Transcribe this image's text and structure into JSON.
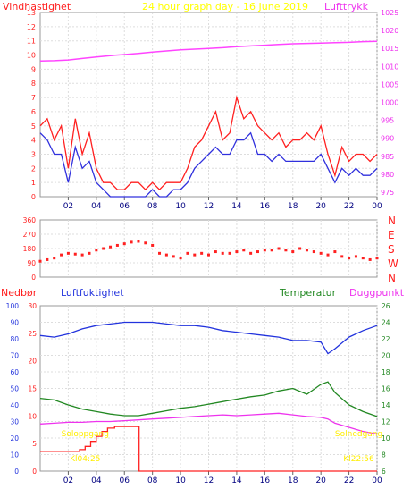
{
  "chart_data": [
    {
      "type": "line",
      "title": "24 hour graph day - 16 June 2019",
      "left_label": "Vindhastighet",
      "right_label": "Lufttrykk",
      "x_ticks": [
        "02",
        "04",
        "06",
        "08",
        "10",
        "12",
        "14",
        "16",
        "18",
        "20",
        "22",
        "00"
      ],
      "x_range": [
        0,
        24
      ],
      "y_left_range": [
        0,
        13
      ],
      "y_left_ticks": [
        "0",
        "1",
        "2",
        "3",
        "4",
        "5",
        "6",
        "7",
        "8",
        "9",
        "10",
        "11",
        "12",
        "13"
      ],
      "y_right_range": [
        973.75,
        1025
      ],
      "y_right_ticks": [
        "975",
        "980",
        "985",
        "990",
        "995",
        "1000",
        "1005",
        "1010",
        "1015",
        "1020",
        "1025"
      ],
      "series": [
        {
          "role": "wind_gust",
          "axis": "left",
          "color": "#ff2020",
          "x": [
            0,
            0.5,
            1,
            1.5,
            2,
            2.5,
            3,
            3.5,
            4,
            4.5,
            5,
            5.5,
            6,
            6.5,
            7,
            7.5,
            8,
            8.5,
            9,
            9.5,
            10,
            10.5,
            11,
            11.5,
            12,
            12.5,
            13,
            13.5,
            14,
            14.5,
            15,
            15.5,
            16,
            16.5,
            17,
            17.5,
            18,
            18.5,
            19,
            19.5,
            20,
            20.5,
            21,
            21.5,
            22,
            22.5,
            23,
            23.5,
            24
          ],
          "values": [
            5,
            5.5,
            4,
            5,
            2,
            5.5,
            3,
            4.5,
            2,
            1,
            1,
            0.5,
            0.5,
            1,
            1,
            0.5,
            1,
            0.5,
            1,
            1,
            1,
            2,
            3.5,
            4,
            5,
            6,
            4,
            4.5,
            7,
            5.5,
            6,
            5,
            4.5,
            4,
            4.5,
            3.5,
            4,
            4,
            4.5,
            4,
            5,
            3,
            1.5,
            3.5,
            2.5,
            3,
            3,
            2.5,
            3
          ]
        },
        {
          "role": "wind_avg",
          "axis": "left",
          "color": "#3030dd",
          "x": [
            0,
            0.5,
            1,
            1.5,
            2,
            2.5,
            3,
            3.5,
            4,
            4.5,
            5,
            5.5,
            6,
            6.5,
            7,
            7.5,
            8,
            8.5,
            9,
            9.5,
            10,
            10.5,
            11,
            11.5,
            12,
            12.5,
            13,
            13.5,
            14,
            14.5,
            15,
            15.5,
            16,
            16.5,
            17,
            17.5,
            18,
            18.5,
            19,
            19.5,
            20,
            20.5,
            21,
            21.5,
            22,
            22.5,
            23,
            23.5,
            24
          ],
          "values": [
            4.5,
            4,
            3,
            3,
            1,
            3.5,
            2,
            2.5,
            1,
            0.5,
            0,
            0,
            0,
            0,
            0,
            0,
            0.5,
            0,
            0,
            0.5,
            0.5,
            1,
            2,
            2.5,
            3,
            3.5,
            3,
            3,
            4,
            4,
            4.5,
            3,
            3,
            2.5,
            3,
            2.5,
            2.5,
            2.5,
            2.5,
            2.5,
            3,
            2,
            1,
            2,
            1.5,
            2,
            1.5,
            1.5,
            2
          ]
        },
        {
          "role": "pressure",
          "axis": "right",
          "color": "#ff44ff",
          "x": [
            0,
            1,
            2,
            3,
            4,
            5,
            6,
            7,
            8,
            9,
            10,
            11,
            12,
            13,
            14,
            15,
            16,
            17,
            18,
            19,
            20,
            21,
            22,
            23,
            24
          ],
          "values": [
            1011.5,
            1011.6,
            1011.8,
            1012.2,
            1012.6,
            1013,
            1013.3,
            1013.6,
            1014,
            1014.3,
            1014.6,
            1014.8,
            1015,
            1015.2,
            1015.5,
            1015.7,
            1015.9,
            1016.1,
            1016.3,
            1016.4,
            1016.5,
            1016.6,
            1016.7,
            1016.9,
            1017
          ]
        }
      ]
    },
    {
      "type": "scatter",
      "role": "wind_direction",
      "x_range": [
        0,
        24
      ],
      "y_range": [
        0,
        360
      ],
      "y_ticks": [
        "0",
        "90",
        "180",
        "270",
        "360"
      ],
      "compass": [
        "N",
        "W",
        "S",
        "E",
        "N"
      ],
      "color": "#ff2020",
      "x": [
        0,
        0.5,
        1,
        1.5,
        2,
        2.5,
        3,
        3.5,
        4,
        4.5,
        5,
        5.5,
        6,
        6.5,
        7,
        7.5,
        8,
        8.5,
        9,
        9.5,
        10,
        10.5,
        11,
        11.5,
        12,
        12.5,
        13,
        13.5,
        14,
        14.5,
        15,
        15.5,
        16,
        16.5,
        17,
        17.5,
        18,
        18.5,
        19,
        19.5,
        20,
        20.5,
        21,
        21.5,
        22,
        22.5,
        23,
        23.5,
        24
      ],
      "values": [
        100,
        110,
        120,
        140,
        150,
        145,
        140,
        150,
        170,
        180,
        190,
        200,
        210,
        220,
        225,
        215,
        200,
        150,
        140,
        130,
        120,
        150,
        140,
        150,
        140,
        160,
        150,
        150,
        160,
        170,
        150,
        160,
        170,
        170,
        180,
        170,
        160,
        180,
        170,
        160,
        150,
        140,
        160,
        130,
        120,
        130,
        120,
        110,
        120
      ]
    },
    {
      "type": "line",
      "left_labels": [
        "Nedbør",
        "Luftfuktighet"
      ],
      "right_labels": [
        "Temperatur",
        "Duggpunkt"
      ],
      "x_ticks": [
        "02",
        "04",
        "06",
        "08",
        "10",
        "12",
        "14",
        "16",
        "18",
        "20",
        "22",
        "00"
      ],
      "x_range": [
        0,
        24
      ],
      "rain_range": [
        0,
        100
      ],
      "rain_ticks": [
        "0",
        "10",
        "20",
        "30",
        "40",
        "50",
        "60",
        "70",
        "80",
        "90",
        "100"
      ],
      "humidity_range": [
        0,
        30
      ],
      "humidity_ticks": [
        "0",
        "5",
        "10",
        "15",
        "20",
        "25",
        "30"
      ],
      "temp_range": [
        6,
        26
      ],
      "temp_ticks": [
        "6",
        "8",
        "10",
        "12",
        "14",
        "16",
        "18",
        "20",
        "22",
        "24",
        "26"
      ],
      "annotations": [
        {
          "text": "Soloppgang",
          "x": 3.2,
          "y": 10.2
        },
        {
          "text": "Kl04:25",
          "x": 3.2,
          "y": 7.2
        },
        {
          "text": "Solnedgang",
          "x": 22.7,
          "y": 10.2
        },
        {
          "text": "Kl22:56",
          "x": 22.7,
          "y": 7.2
        }
      ],
      "series": [
        {
          "role": "humidity",
          "axis": "left_rain",
          "color": "#2233dd",
          "x": [
            0,
            1,
            2,
            3,
            4,
            5,
            6,
            7,
            8,
            9,
            10,
            11,
            12,
            13,
            14,
            15,
            16,
            17,
            18,
            19,
            20,
            20.5,
            21,
            22,
            23,
            24
          ],
          "values": [
            82,
            81,
            83,
            86,
            88,
            89,
            90,
            90,
            90,
            89,
            88,
            88,
            87,
            85,
            84,
            83,
            82,
            81,
            79,
            79,
            78,
            71,
            74,
            81,
            85,
            88
          ]
        },
        {
          "role": "temperature",
          "axis": "temp",
          "color": "#228822",
          "x": [
            0,
            1,
            2,
            3,
            4,
            5,
            6,
            7,
            8,
            9,
            10,
            11,
            12,
            13,
            14,
            15,
            16,
            17,
            18,
            19,
            20,
            20.5,
            21,
            22,
            23,
            24
          ],
          "values": [
            14.8,
            14.6,
            14,
            13.5,
            13.2,
            12.9,
            12.7,
            12.7,
            13,
            13.3,
            13.6,
            13.8,
            14.1,
            14.4,
            14.7,
            15,
            15.2,
            15.7,
            16,
            15.3,
            16.5,
            16.8,
            15.5,
            14,
            13.2,
            12.6
          ]
        },
        {
          "role": "dew_point",
          "axis": "temp",
          "color": "#ee33ee",
          "x": [
            0,
            1,
            2,
            3,
            4,
            5,
            6,
            7,
            8,
            9,
            10,
            11,
            12,
            13,
            14,
            15,
            16,
            17,
            18,
            19,
            20,
            20.5,
            21,
            22,
            23,
            24
          ],
          "values": [
            11.7,
            11.8,
            11.9,
            11.9,
            12,
            12,
            12.1,
            12.2,
            12.3,
            12.4,
            12.5,
            12.6,
            12.7,
            12.8,
            12.7,
            12.8,
            12.9,
            13,
            12.8,
            12.6,
            12.5,
            12.3,
            11.8,
            11.3,
            10.8,
            10.5
          ]
        },
        {
          "role": "rain",
          "axis": "left_rain",
          "color": "#ff2020",
          "step": true,
          "x": [
            0,
            2.4,
            2.8,
            3.2,
            3.6,
            4,
            4.4,
            4.8,
            5.3,
            5.8,
            6.5,
            7,
            7.05,
            24
          ],
          "values": [
            12,
            12,
            13,
            15,
            18,
            21,
            24,
            26,
            27,
            27,
            27,
            27,
            0,
            0
          ]
        }
      ]
    }
  ]
}
